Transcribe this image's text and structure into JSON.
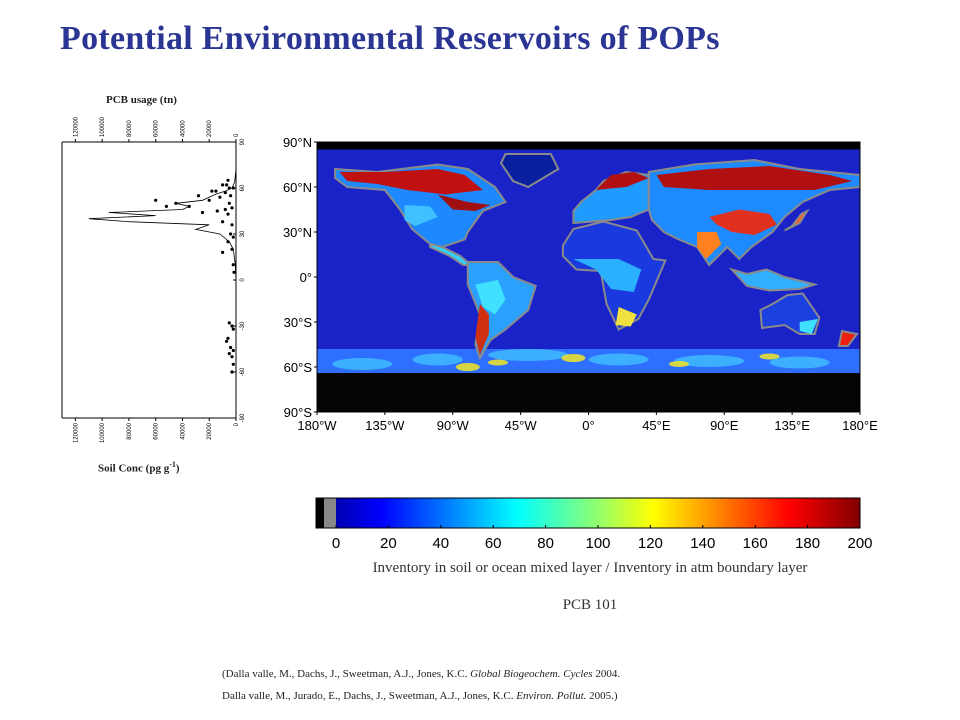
{
  "title": "Potential Environmental Reservoirs of POPs",
  "left_plot": {
    "top_label": "PCB usage (tn)",
    "bottom_label_main": "Soil Conc (pg g",
    "bottom_label_sup": "-1",
    "bottom_label_end": ")",
    "top_axis_ticks": [
      "120000",
      "100000",
      "80000",
      "60000",
      "40000",
      "20000",
      "0"
    ],
    "bottom_axis_ticks": [
      "120000",
      "100000",
      "80000",
      "60000",
      "40000",
      "20000",
      "0"
    ],
    "lat_ticks": [
      "90",
      "60",
      "30",
      "0",
      "-30",
      "-60",
      "-90"
    ]
  },
  "map": {
    "lat_labels": [
      "90°N",
      "60°N",
      "30°N",
      "0°",
      "30°S",
      "60°S",
      "90°S"
    ],
    "lon_labels": [
      "180°W",
      "135°W",
      "90°W",
      "45°W",
      "0°",
      "45°E",
      "90°E",
      "135°E",
      "180°E"
    ]
  },
  "colorbar": {
    "ticks": [
      "0",
      "20",
      "40",
      "60",
      "80",
      "100",
      "120",
      "140",
      "160",
      "180",
      "200"
    ],
    "caption": "Inventory in soil or ocean mixed layer / Inventory in atm boundary layer",
    "compound": "PCB 101"
  },
  "chart_data": [
    {
      "type": "line",
      "title": "",
      "xlabel": "PCB usage (tn)",
      "ylabel": "",
      "xlim": [
        0,
        130000
      ],
      "ylim": [
        -90,
        90
      ],
      "series": [
        {
          "values_lat": [
            -90,
            -60,
            -40,
            -20,
            0,
            10,
            20,
            25,
            30,
            33,
            36,
            38,
            40,
            42,
            44,
            46,
            48,
            50,
            52,
            54,
            56,
            58,
            60,
            64,
            68,
            72,
            90
          ],
          "values_usage": [
            0,
            0,
            0,
            0,
            0,
            500,
            2000,
            5000,
            12000,
            30000,
            20000,
            80000,
            110000,
            60000,
            95000,
            40000,
            35000,
            45000,
            25000,
            20000,
            15000,
            8000,
            3000,
            1000,
            500,
            0,
            0
          ]
        }
      ]
    },
    {
      "type": "scatter",
      "xlabel": "Soil Conc (pg g-1)",
      "xlim": [
        0,
        130000
      ],
      "ylim": [
        -90,
        90
      ],
      "points_lat": [
        65,
        62,
        60,
        58,
        57,
        55,
        54,
        52,
        50,
        50,
        48,
        47,
        46,
        45,
        44,
        43,
        52,
        55,
        60,
        62,
        58,
        48,
        38,
        36,
        30,
        28,
        25,
        20,
        18,
        10,
        5,
        -28,
        -30,
        -32,
        -38,
        -44,
        -46,
        -48,
        -50,
        -40,
        -55,
        -60
      ],
      "points_conc": [
        6000,
        10000,
        5000,
        15000,
        8000,
        28000,
        12000,
        20000,
        45000,
        5000,
        35000,
        3000,
        8000,
        14000,
        25000,
        6000,
        60000,
        4000,
        2000,
        7000,
        18000,
        52000,
        10000,
        3000,
        4000,
        2000,
        6000,
        3000,
        10000,
        2000,
        1500,
        5000,
        3000,
        2000,
        6000,
        4000,
        2000,
        5000,
        3000,
        7000,
        2000,
        3000
      ]
    },
    {
      "type": "heatmap",
      "title": "",
      "xlabel": "",
      "ylabel": "",
      "xlim": [
        -180,
        180
      ],
      "ylim": [
        -90,
        90
      ],
      "colorbar_range": [
        0,
        200
      ]
    }
  ],
  "references": {
    "line1_prefix": "(Dalla valle, M., Dachs, J., Sweetman, A.J., Jones, K.C. ",
    "line1_journal": "Global Biogeochem. Cycles",
    "line1_suffix": " 2004.",
    "line2_prefix": "Dalla valle, M., Jurado, E., Dachs, J., Sweetman, A.J., Jones, K.C. ",
    "line2_journal": "Environ. Pollut.",
    "line2_suffix": " 2005.)"
  }
}
